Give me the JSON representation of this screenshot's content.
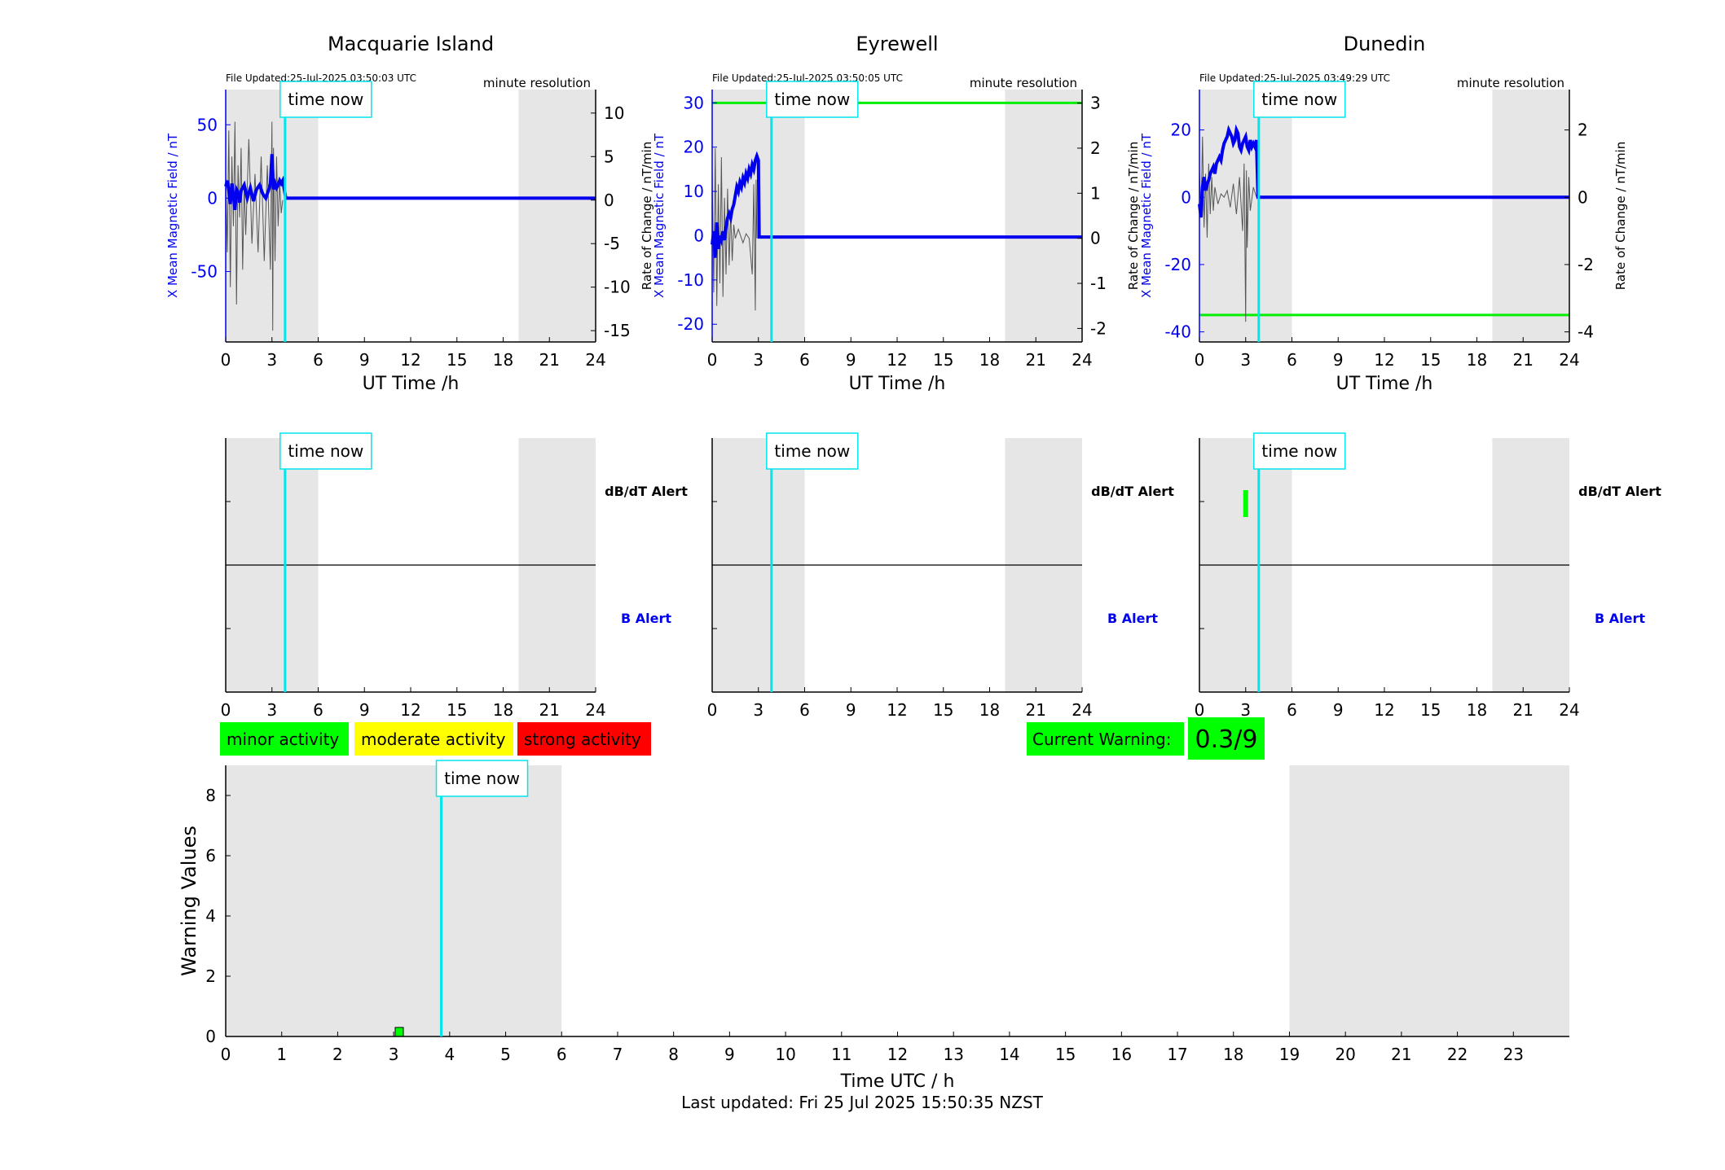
{
  "time_now_label": "time now",
  "time_now_h": 3.85,
  "magnetometer_panels": [
    {
      "id": "macquarie",
      "title": "Macquarie Island",
      "file_updated": "File Updated:25-Jul-2025 03:50:03 UTC",
      "resolution": "minute resolution",
      "xlabel": "UT Time /h",
      "ylabel_left": "X Mean Magnetic Field / nT",
      "ylabel_right": "Rate of Change / nT/min",
      "xlim": [
        0,
        24
      ],
      "ylim_left": [
        -98,
        74
      ],
      "ylim_right": [
        -16.3,
        12.7
      ],
      "left_ticks": [
        50,
        0,
        -50
      ],
      "right_ticks": [
        10,
        5,
        0,
        -5,
        -10,
        -15
      ],
      "night_shading": [
        [
          0,
          6
        ],
        [
          19,
          24
        ]
      ],
      "threshold_line": null,
      "mag_series": [
        [
          0,
          8
        ],
        [
          0.1,
          12
        ],
        [
          0.2,
          5
        ],
        [
          0.3,
          -4
        ],
        [
          0.4,
          10
        ],
        [
          0.5,
          2
        ],
        [
          0.6,
          -8
        ],
        [
          0.7,
          6
        ],
        [
          0.8,
          4
        ],
        [
          0.9,
          -3
        ],
        [
          1.0,
          5
        ],
        [
          1.2,
          9
        ],
        [
          1.4,
          0
        ],
        [
          1.6,
          7
        ],
        [
          1.8,
          -2
        ],
        [
          2.0,
          6
        ],
        [
          2.2,
          9
        ],
        [
          2.4,
          3
        ],
        [
          2.6,
          0
        ],
        [
          2.8,
          6
        ],
        [
          2.9,
          10
        ],
        [
          3.0,
          30
        ],
        [
          3.1,
          6
        ],
        [
          3.2,
          10
        ],
        [
          3.3,
          7
        ],
        [
          3.4,
          9
        ],
        [
          3.5,
          12
        ],
        [
          3.6,
          10
        ],
        [
          3.7,
          12
        ],
        [
          3.9,
          0
        ],
        [
          24,
          0
        ]
      ],
      "rate_series": [
        [
          0,
          3
        ],
        [
          0.1,
          -6
        ],
        [
          0.2,
          8
        ],
        [
          0.3,
          -10
        ],
        [
          0.4,
          5
        ],
        [
          0.5,
          -3
        ],
        [
          0.6,
          9
        ],
        [
          0.7,
          -12
        ],
        [
          0.8,
          4
        ],
        [
          0.9,
          -2
        ],
        [
          1.0,
          6
        ],
        [
          1.1,
          -8
        ],
        [
          1.2,
          2
        ],
        [
          1.3,
          -4
        ],
        [
          1.5,
          7
        ],
        [
          1.7,
          -5
        ],
        [
          1.9,
          3
        ],
        [
          2.1,
          -6
        ],
        [
          2.3,
          5
        ],
        [
          2.5,
          -7
        ],
        [
          2.7,
          4
        ],
        [
          2.9,
          -8
        ],
        [
          3.0,
          9
        ],
        [
          3.05,
          -15
        ],
        [
          3.1,
          6
        ],
        [
          3.2,
          -7
        ],
        [
          3.3,
          5
        ],
        [
          3.4,
          -3
        ],
        [
          3.5,
          2
        ],
        [
          3.6,
          -1.5
        ],
        [
          3.7,
          0
        ]
      ]
    },
    {
      "id": "eyrewell",
      "title": "Eyrewell",
      "file_updated": "File Updated:25-Jul-2025 03:50:05 UTC",
      "resolution": "minute resolution",
      "xlabel": "UT Time /h",
      "ylabel_left": "X Mean Magnetic Field / nT",
      "ylabel_right": "Rate of Change / nT/min",
      "xlim": [
        0,
        24
      ],
      "ylim_left": [
        -24,
        33
      ],
      "ylim_right": [
        -2.3,
        3.3
      ],
      "left_ticks": [
        30,
        20,
        10,
        0,
        -10,
        -20
      ],
      "right_ticks": [
        3,
        2,
        1,
        0,
        -1,
        -2
      ],
      "night_shading": [
        [
          0,
          6
        ],
        [
          19,
          24
        ]
      ],
      "threshold_line": 30,
      "mag_series": [
        [
          0,
          -2
        ],
        [
          0.1,
          1
        ],
        [
          0.2,
          -5
        ],
        [
          0.3,
          3
        ],
        [
          0.4,
          -3
        ],
        [
          0.5,
          0
        ],
        [
          0.6,
          -1
        ],
        [
          0.7,
          1
        ],
        [
          0.8,
          -1
        ],
        [
          0.9,
          2
        ],
        [
          1.0,
          4
        ],
        [
          1.1,
          5
        ],
        [
          1.2,
          4
        ],
        [
          1.3,
          6
        ],
        [
          1.4,
          7
        ],
        [
          1.5,
          9
        ],
        [
          1.6,
          11
        ],
        [
          1.7,
          10
        ],
        [
          1.8,
          12
        ],
        [
          1.9,
          11
        ],
        [
          2.0,
          13
        ],
        [
          2.1,
          12
        ],
        [
          2.2,
          14
        ],
        [
          2.3,
          13
        ],
        [
          2.4,
          15
        ],
        [
          2.5,
          14
        ],
        [
          2.6,
          16
        ],
        [
          2.7,
          15
        ],
        [
          2.8,
          17
        ],
        [
          2.9,
          18
        ],
        [
          3.0,
          17
        ],
        [
          3.05,
          -0.3
        ],
        [
          24,
          -0.3
        ]
      ],
      "rate_series": [
        [
          0,
          1.5
        ],
        [
          0.1,
          -1.2
        ],
        [
          0.2,
          2.0
        ],
        [
          0.3,
          -1.5
        ],
        [
          0.4,
          1.2
        ],
        [
          0.5,
          -1.0
        ],
        [
          0.6,
          1.8
        ],
        [
          0.7,
          -1.3
        ],
        [
          0.8,
          0.9
        ],
        [
          0.9,
          -0.8
        ],
        [
          1.0,
          1.1
        ],
        [
          1.1,
          -0.6
        ],
        [
          1.2,
          0.6
        ],
        [
          1.3,
          -0.5
        ],
        [
          1.4,
          0.3
        ],
        [
          1.5,
          0
        ],
        [
          1.7,
          0.2
        ],
        [
          1.9,
          0
        ],
        [
          2.0,
          -0.1
        ],
        [
          2.2,
          0.1
        ],
        [
          2.4,
          0
        ],
        [
          2.6,
          -0.8
        ],
        [
          2.7,
          1.2
        ],
        [
          2.8,
          -1.6
        ],
        [
          2.85,
          1.3
        ],
        [
          2.9,
          0
        ]
      ]
    },
    {
      "id": "dunedin",
      "title": "Dunedin",
      "file_updated": "File Updated:25-Jul-2025 03:49:29 UTC",
      "resolution": "minute resolution",
      "xlabel": "UT Time /h",
      "ylabel_left": "X Mean Magnetic Field / nT",
      "ylabel_right": "Rate of Change / nT/min",
      "xlim": [
        0,
        24
      ],
      "ylim_left": [
        -43,
        32
      ],
      "ylim_right": [
        -4.3,
        3.2
      ],
      "left_ticks": [
        20,
        0,
        -20,
        -40
      ],
      "right_ticks": [
        2,
        0,
        -2,
        -4
      ],
      "night_shading": [
        [
          0,
          6
        ],
        [
          19,
          24
        ]
      ],
      "threshold_line": -35,
      "mag_series": [
        [
          0,
          -2
        ],
        [
          0.1,
          -6
        ],
        [
          0.2,
          3
        ],
        [
          0.3,
          6
        ],
        [
          0.4,
          2
        ],
        [
          0.5,
          4
        ],
        [
          0.6,
          5
        ],
        [
          0.7,
          7
        ],
        [
          0.8,
          8
        ],
        [
          0.9,
          9
        ],
        [
          1.0,
          7
        ],
        [
          1.1,
          10
        ],
        [
          1.2,
          11
        ],
        [
          1.3,
          12
        ],
        [
          1.4,
          11
        ],
        [
          1.5,
          14
        ],
        [
          1.6,
          16
        ],
        [
          1.7,
          17
        ],
        [
          1.8,
          18
        ],
        [
          1.9,
          20
        ],
        [
          2.0,
          19
        ],
        [
          2.1,
          18
        ],
        [
          2.2,
          16
        ],
        [
          2.3,
          17
        ],
        [
          2.4,
          20
        ],
        [
          2.5,
          19
        ],
        [
          2.6,
          15
        ],
        [
          2.7,
          14
        ],
        [
          2.8,
          16
        ],
        [
          2.9,
          17
        ],
        [
          3.0,
          18
        ],
        [
          3.1,
          15
        ],
        [
          3.2,
          14
        ],
        [
          3.3,
          17
        ],
        [
          3.4,
          15
        ],
        [
          3.5,
          16
        ],
        [
          3.6,
          15
        ],
        [
          3.7,
          17
        ],
        [
          3.8,
          0
        ],
        [
          24,
          0
        ]
      ],
      "rate_series": [
        [
          0,
          0.8
        ],
        [
          0.1,
          -0.6
        ],
        [
          0.2,
          1.8
        ],
        [
          0.3,
          -0.9
        ],
        [
          0.4,
          0.7
        ],
        [
          0.5,
          -1.2
        ],
        [
          0.6,
          1.0
        ],
        [
          0.7,
          -0.5
        ],
        [
          0.8,
          0.6
        ],
        [
          0.9,
          -0.4
        ],
        [
          1.0,
          0.3
        ],
        [
          1.2,
          -0.2
        ],
        [
          1.4,
          0.1
        ],
        [
          1.6,
          0
        ],
        [
          1.8,
          0.2
        ],
        [
          2.0,
          -0.3
        ],
        [
          2.2,
          0.4
        ],
        [
          2.4,
          -0.5
        ],
        [
          2.6,
          0.6
        ],
        [
          2.8,
          -1.0
        ],
        [
          2.9,
          1.0
        ],
        [
          3.0,
          -3.7
        ],
        [
          3.05,
          0.8
        ],
        [
          3.1,
          -1.5
        ],
        [
          3.2,
          0.6
        ],
        [
          3.3,
          -0.4
        ],
        [
          3.5,
          0.3
        ],
        [
          3.7,
          0
        ]
      ]
    }
  ],
  "alert_panels": [
    {
      "id": "macquarie",
      "dbdt_label": "dB/dT Alert",
      "b_label": "B Alert",
      "xlim": [
        0,
        24
      ],
      "night_shading": [
        [
          0,
          6
        ],
        [
          19,
          24
        ]
      ],
      "dbdt_alert_hours": [],
      "b_alert_hours": []
    },
    {
      "id": "eyrewell",
      "dbdt_label": "dB/dT Alert",
      "b_label": "B Alert",
      "xlim": [
        0,
        24
      ],
      "night_shading": [
        [
          0,
          6
        ],
        [
          19,
          24
        ]
      ],
      "dbdt_alert_hours": [],
      "b_alert_hours": []
    },
    {
      "id": "dunedin",
      "dbdt_label": "dB/dT Alert",
      "b_label": "B Alert",
      "xlim": [
        0,
        24
      ],
      "night_shading": [
        [
          0,
          6
        ],
        [
          19,
          24
        ]
      ],
      "dbdt_alert_hours": [
        3.0
      ],
      "b_alert_hours": []
    }
  ],
  "x_ticks_6h": [
    0,
    3,
    6,
    9,
    12,
    15,
    18,
    21,
    24
  ],
  "legend": [
    {
      "label": "minor activity",
      "color": "#00ff00"
    },
    {
      "label": "moderate activity",
      "color": "#ffff00"
    },
    {
      "label": "strong activity",
      "color": "#ff0000"
    }
  ],
  "current_warning": {
    "label": "Current Warning:",
    "value": "0.3/9",
    "color": "#00ff00"
  },
  "chart_data": {
    "type": "bar",
    "xlabel": "Time UTC / h",
    "ylabel": "Warning Values",
    "xlim": [
      0,
      24
    ],
    "ylim": [
      0,
      9
    ],
    "x_ticks": [
      0,
      1,
      2,
      3,
      4,
      5,
      6,
      7,
      8,
      9,
      10,
      11,
      12,
      13,
      14,
      15,
      16,
      17,
      18,
      19,
      20,
      21,
      22,
      23
    ],
    "y_ticks": [
      0,
      2,
      4,
      6,
      8
    ],
    "night_shading": [
      [
        0,
        6
      ],
      [
        19,
        24
      ]
    ],
    "bars": [
      {
        "x": 3.1,
        "value": 0.3,
        "color": "#00ff00"
      }
    ]
  },
  "colors": {
    "mag": "#0000ee",
    "rate": "#555555",
    "time_now": "#00e5ee",
    "shade": "#e6e6e6",
    "threshold": "#00ee00",
    "b_alert_label": "#0000ee"
  },
  "footer": "Last updated: Fri 25 Jul 2025 15:50:35 NZST"
}
